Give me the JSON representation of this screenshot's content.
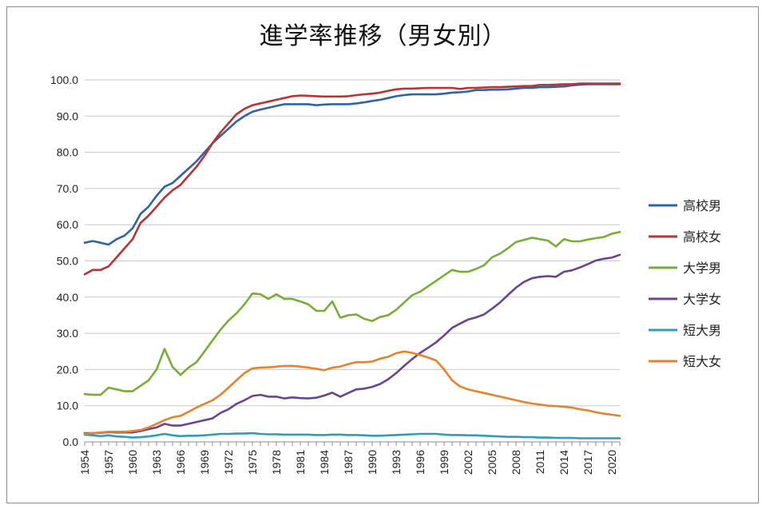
{
  "chart_data": {
    "type": "line",
    "title": "進学率推移（男女別）",
    "xlabel": "",
    "ylabel": "",
    "ylim": [
      0,
      100
    ],
    "yticks": [
      "0.0",
      "10.0",
      "20.0",
      "30.0",
      "40.0",
      "50.0",
      "60.0",
      "70.0",
      "80.0",
      "90.0",
      "100.0"
    ],
    "x": [
      1954,
      1955,
      1956,
      1957,
      1958,
      1959,
      1960,
      1961,
      1962,
      1963,
      1964,
      1965,
      1966,
      1967,
      1968,
      1969,
      1970,
      1971,
      1972,
      1973,
      1974,
      1975,
      1976,
      1977,
      1978,
      1979,
      1980,
      1981,
      1982,
      1983,
      1984,
      1985,
      1986,
      1987,
      1988,
      1989,
      1990,
      1991,
      1992,
      1993,
      1994,
      1995,
      1996,
      1997,
      1998,
      1999,
      2000,
      2001,
      2002,
      2003,
      2004,
      2005,
      2006,
      2007,
      2008,
      2009,
      2010,
      2011,
      2012,
      2013,
      2014,
      2015,
      2016,
      2017,
      2018,
      2019,
      2020,
      2021
    ],
    "xticks": [
      "1954",
      "1957",
      "1960",
      "1963",
      "1966",
      "1969",
      "1972",
      "1975",
      "1978",
      "1981",
      "1984",
      "1987",
      "1990",
      "1993",
      "1996",
      "1999",
      "2002",
      "2005",
      "2008",
      "2011",
      "2014",
      "2017",
      "2020"
    ],
    "grid": true,
    "legend_position": "right",
    "series": [
      {
        "name": "高校男",
        "color": "#2e63a6",
        "values": [
          55.0,
          55.5,
          55.0,
          54.5,
          56.0,
          57.0,
          59.0,
          63.0,
          65.0,
          68.0,
          70.5,
          71.5,
          73.5,
          75.5,
          77.5,
          80.0,
          82.5,
          84.5,
          86.5,
          88.5,
          90.0,
          91.2,
          91.8,
          92.3,
          92.8,
          93.3,
          93.3,
          93.3,
          93.3,
          93.0,
          93.2,
          93.3,
          93.3,
          93.3,
          93.5,
          93.8,
          94.2,
          94.5,
          95.0,
          95.5,
          95.8,
          96.0,
          96.0,
          96.0,
          96.0,
          96.2,
          96.5,
          96.6,
          96.8,
          97.2,
          97.2,
          97.3,
          97.3,
          97.4,
          97.6,
          97.8,
          97.8,
          98.0,
          98.0,
          98.1,
          98.2,
          98.5,
          98.7,
          98.8,
          98.8,
          98.8,
          98.8,
          98.8
        ]
      },
      {
        "name": "高校女",
        "color": "#b83434",
        "values": [
          46.3,
          47.5,
          47.5,
          48.5,
          51.0,
          53.5,
          56.0,
          60.5,
          62.5,
          65.0,
          67.5,
          69.5,
          71.0,
          73.5,
          76.0,
          79.0,
          82.5,
          85.5,
          88.0,
          90.5,
          92.0,
          93.0,
          93.5,
          94.0,
          94.5,
          95.0,
          95.5,
          95.7,
          95.6,
          95.5,
          95.4,
          95.4,
          95.4,
          95.5,
          95.8,
          96.0,
          96.2,
          96.5,
          97.0,
          97.4,
          97.6,
          97.6,
          97.7,
          97.8,
          97.8,
          97.8,
          97.8,
          97.5,
          97.8,
          97.8,
          97.9,
          98.0,
          98.0,
          98.1,
          98.2,
          98.3,
          98.3,
          98.6,
          98.6,
          98.7,
          98.8,
          98.8,
          99.0,
          99.0,
          99.0,
          99.0,
          99.0,
          99.0
        ]
      },
      {
        "name": "大学男",
        "color": "#78ad3a",
        "values": [
          13.2,
          13.0,
          13.0,
          15.0,
          14.5,
          14.0,
          14.0,
          15.5,
          17.0,
          20.0,
          25.7,
          20.7,
          18.5,
          20.5,
          22.0,
          25.0,
          28.0,
          31.0,
          33.5,
          35.5,
          38.0,
          41.0,
          40.8,
          39.5,
          40.8,
          39.5,
          39.5,
          38.8,
          38.0,
          36.2,
          36.2,
          38.8,
          34.3,
          35.0,
          35.2,
          34.0,
          33.4,
          34.5,
          35.0,
          36.5,
          38.5,
          40.5,
          41.5,
          43.0,
          44.5,
          46.0,
          47.5,
          47.0,
          47.0,
          47.8,
          48.8,
          51.0,
          52.0,
          53.5,
          55.2,
          55.8,
          56.4,
          56.0,
          55.6,
          54.0,
          56.0,
          55.4,
          55.4,
          55.9,
          56.3,
          56.6,
          57.5,
          58.0
        ]
      },
      {
        "name": "大学女",
        "color": "#6a4492",
        "values": [
          2.4,
          2.4,
          2.5,
          2.7,
          2.6,
          2.6,
          2.6,
          3.0,
          3.5,
          4.0,
          5.0,
          4.5,
          4.5,
          5.0,
          5.5,
          6.0,
          6.5,
          8.0,
          9.0,
          10.5,
          11.5,
          12.7,
          13.0,
          12.5,
          12.5,
          12.0,
          12.3,
          12.1,
          12.0,
          12.2,
          12.8,
          13.6,
          12.5,
          13.5,
          14.5,
          14.7,
          15.2,
          16.0,
          17.3,
          19.0,
          21.0,
          22.9,
          24.6,
          26.0,
          27.5,
          29.4,
          31.5,
          32.7,
          33.8,
          34.4,
          35.2,
          36.8,
          38.5,
          40.6,
          42.6,
          44.2,
          45.2,
          45.6,
          45.8,
          45.6,
          47.0,
          47.4,
          48.2,
          49.1,
          50.1,
          50.6,
          50.9,
          51.7
        ]
      },
      {
        "name": "短大男",
        "color": "#2e9cba",
        "values": [
          2.0,
          1.8,
          1.6,
          1.8,
          1.5,
          1.4,
          1.2,
          1.3,
          1.5,
          1.8,
          2.2,
          1.8,
          1.6,
          1.7,
          1.7,
          1.8,
          2.0,
          2.2,
          2.2,
          2.3,
          2.3,
          2.4,
          2.2,
          2.1,
          2.1,
          2.0,
          2.0,
          2.0,
          2.0,
          1.9,
          1.9,
          2.0,
          2.0,
          1.9,
          1.9,
          1.8,
          1.7,
          1.7,
          1.8,
          1.9,
          2.0,
          2.1,
          2.2,
          2.2,
          2.2,
          2.0,
          1.9,
          1.9,
          1.8,
          1.8,
          1.7,
          1.6,
          1.5,
          1.4,
          1.4,
          1.3,
          1.3,
          1.2,
          1.2,
          1.1,
          1.1,
          1.1,
          1.0,
          1.0,
          1.0,
          1.0,
          1.0,
          1.0
        ]
      },
      {
        "name": "短大女",
        "color": "#e6832e",
        "values": [
          2.2,
          2.4,
          2.6,
          2.8,
          2.8,
          2.8,
          3.0,
          3.3,
          4.0,
          5.0,
          6.0,
          6.8,
          7.2,
          8.3,
          9.5,
          10.5,
          11.5,
          13.0,
          15.0,
          17.0,
          19.0,
          20.3,
          20.5,
          20.6,
          20.8,
          21.0,
          21.0,
          20.8,
          20.5,
          20.2,
          19.8,
          20.5,
          20.8,
          21.5,
          22.0,
          22.0,
          22.2,
          23.0,
          23.5,
          24.5,
          25.0,
          24.6,
          24.0,
          23.3,
          22.5,
          20.0,
          17.0,
          15.3,
          14.5,
          14.0,
          13.5,
          13.0,
          12.5,
          12.0,
          11.5,
          11.0,
          10.6,
          10.3,
          10.0,
          9.9,
          9.7,
          9.5,
          9.0,
          8.7,
          8.2,
          7.8,
          7.5,
          7.2
        ]
      }
    ]
  }
}
